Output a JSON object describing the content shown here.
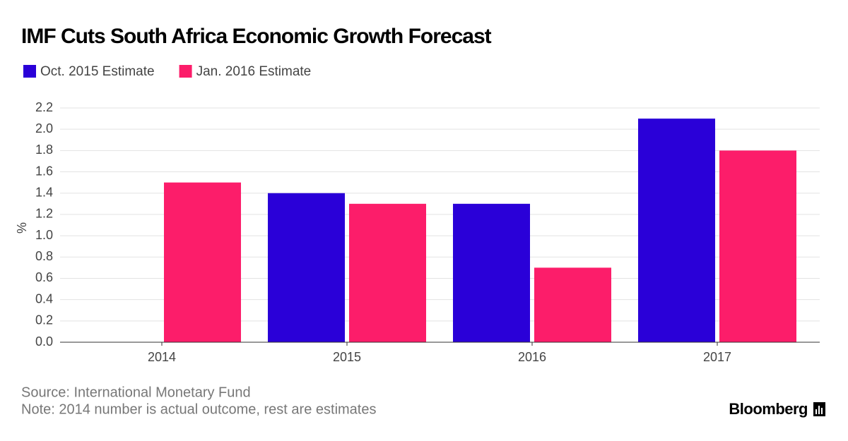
{
  "chart_data": {
    "type": "bar",
    "title": "IMF Cuts South Africa Economic Growth Forecast",
    "ylabel": "%",
    "categories": [
      "2014",
      "2015",
      "2016",
      "2017"
    ],
    "series": [
      {
        "name": "Oct. 2015 Estimate",
        "color": "#2a00d8",
        "values": [
          null,
          1.4,
          1.3,
          2.1
        ]
      },
      {
        "name": "Jan. 2016 Estimate",
        "color": "#fc1d6a",
        "values": [
          1.5,
          1.3,
          0.7,
          1.8
        ]
      }
    ],
    "ylim": [
      0,
      2.2
    ],
    "yticks": [
      {
        "value": 0,
        "label": "0.0"
      },
      0.2,
      0.4,
      0.6,
      0.8,
      {
        "value": 1,
        "label": "1.0"
      },
      1.2,
      1.4,
      1.6,
      1.8,
      {
        "value": 2,
        "label": "2.0"
      },
      2.2
    ],
    "grid": true,
    "source": "Source: International Monetary Fund",
    "note": "Note: 2014 number is actual outcome, rest are estimates",
    "brand": "Bloomberg"
  }
}
